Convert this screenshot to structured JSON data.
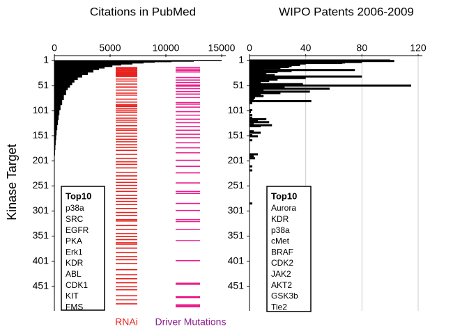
{
  "chart_data": [
    {
      "type": "bar",
      "orientation": "horizontal",
      "title": "Citations in PubMed",
      "ylabel": "Kinase Target",
      "ranks": [
        1,
        2,
        3,
        4,
        5,
        7,
        9,
        11,
        14,
        17,
        20,
        25,
        30,
        35,
        40,
        45,
        50,
        55,
        60,
        70,
        80,
        90,
        100,
        110,
        120,
        130,
        140,
        150,
        160,
        170,
        180,
        190
      ],
      "values": [
        15000,
        12500,
        10500,
        9000,
        8000,
        7000,
        6000,
        5200,
        4500,
        4000,
        3500,
        3000,
        2500,
        2100,
        1800,
        1600,
        1400,
        1200,
        1050,
        850,
        700,
        550,
        450,
        380,
        320,
        260,
        200,
        160,
        120,
        90,
        60,
        40
      ],
      "color": "#000000",
      "xlim": [
        0,
        15000
      ],
      "xticks": [
        0,
        5000,
        10000,
        15000
      ],
      "ylim": [
        1,
        500
      ],
      "yticks": [
        1,
        51,
        101,
        151,
        201,
        251,
        301,
        351,
        401,
        451
      ],
      "grid": false,
      "tracks": [
        {
          "name": "RNAi",
          "color": "#e8231f",
          "label_color": "#e8231f",
          "ranks": [
            15,
            17,
            19,
            21,
            23,
            25,
            27,
            29,
            31,
            33,
            38,
            42,
            48,
            54,
            60,
            66,
            70,
            78,
            84,
            89,
            91,
            93,
            97,
            100,
            104,
            110,
            116,
            120,
            124,
            131,
            137,
            140,
            146,
            152,
            158,
            163,
            169,
            174,
            180,
            188,
            196,
            203,
            208,
            215,
            224,
            231,
            238,
            244,
            250,
            256,
            262,
            270,
            276,
            282,
            288,
            296,
            304,
            310,
            318,
            321,
            330,
            338,
            346,
            352,
            358,
            364,
            367,
            375,
            384,
            392,
            398,
            406,
            418,
            428,
            436,
            444,
            452,
            458,
            470,
            478,
            486
          ]
        },
        {
          "name": "Driver Mutations",
          "color": "#ec1f8c",
          "label_color": "#8b1c8e",
          "ranks": [
            15,
            18,
            21,
            24,
            35,
            40,
            45,
            50,
            52,
            57,
            63,
            68,
            75,
            85,
            88,
            94,
            103,
            110,
            118,
            125,
            133,
            140,
            148,
            155,
            165,
            175,
            185,
            200,
            212,
            225,
            245,
            262,
            266,
            286,
            300,
            318,
            322,
            338,
            360,
            400,
            445,
            447,
            472,
            474,
            488,
            490,
            492
          ]
        }
      ],
      "top10": {
        "title": "Top10",
        "items": [
          "p38a",
          "SRC",
          "EGFR",
          "PKA",
          "Erk1",
          "KDR",
          "ABL",
          "CDK1",
          "KIT",
          "FMS"
        ]
      }
    },
    {
      "type": "bar",
      "orientation": "horizontal",
      "title": "WIPO Patents 2006-2009",
      "ranks": [
        1,
        2,
        3,
        4,
        5,
        6,
        7,
        8,
        9,
        10,
        12,
        14,
        16,
        18,
        20,
        22,
        24,
        26,
        28,
        30,
        33,
        36,
        39,
        42,
        45,
        48,
        51,
        54,
        57,
        60,
        63,
        66,
        69,
        72,
        75,
        78,
        82,
        86,
        100,
        104,
        110,
        115,
        118,
        122,
        124,
        128,
        130,
        132,
        142,
        145,
        150,
        152,
        160,
        188,
        192,
        196,
        212,
        220,
        286
      ],
      "values": [
        100,
        103,
        78,
        80,
        68,
        66,
        40,
        35,
        33,
        36,
        30,
        28,
        22,
        10,
        75,
        30,
        20,
        12,
        8,
        18,
        80,
        40,
        20,
        14,
        8,
        38,
        115,
        25,
        57,
        10,
        43,
        22,
        8,
        10,
        4,
        3,
        44,
        2,
        2,
        1,
        2,
        2,
        12,
        6,
        14,
        3,
        16,
        8,
        3,
        8,
        2,
        6,
        2,
        6,
        3,
        4,
        2,
        2,
        2
      ],
      "color": "#000000",
      "xlim": [
        0,
        120
      ],
      "xticks": [
        0,
        40,
        80,
        120
      ],
      "ylim": [
        1,
        500
      ],
      "yticks": [
        1,
        51,
        101,
        151,
        201,
        251,
        301,
        351,
        401,
        451
      ],
      "grid": true,
      "top10": {
        "title": "Top10",
        "items": [
          "Aurora",
          "KDR",
          "p38a",
          "cMet",
          "BRAF",
          "CDK2",
          "JAK2",
          "AKT2",
          "GSK3b",
          "Tie2"
        ]
      }
    }
  ]
}
